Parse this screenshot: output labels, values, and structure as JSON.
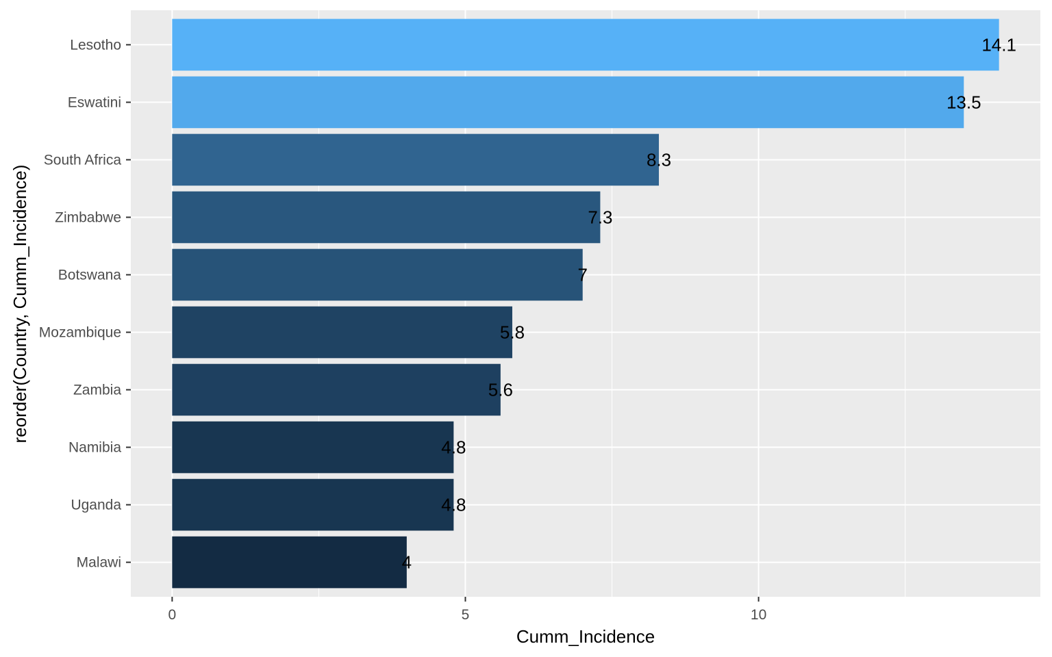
{
  "chart_data": {
    "type": "bar",
    "orientation": "horizontal",
    "categories": [
      "Lesotho",
      "Eswatini",
      "South Africa",
      "Zimbabwe",
      "Botswana",
      "Mozambique",
      "Zambia",
      "Namibia",
      "Uganda",
      "Malawi"
    ],
    "values": [
      14.1,
      13.5,
      8.3,
      7.3,
      7,
      5.8,
      5.6,
      4.8,
      4.8,
      4
    ],
    "data_labels": [
      "14.1",
      "13.5",
      "8.3",
      "7.3",
      "7",
      "5.8",
      "5.6",
      "4.8",
      "4.8",
      "4"
    ],
    "xlabel": "Cumm_Incidence",
    "ylabel": "reorder(Country, Cumm_Incidence)",
    "x_ticks": [
      0,
      5,
      10
    ],
    "x_tick_labels": [
      "0",
      "5",
      "10"
    ],
    "xlim": [
      -0.705,
      14.805
    ],
    "grid": true,
    "legend": "none",
    "fill_scale": {
      "low": "#132B43",
      "high": "#56B1F7"
    },
    "panel_background": "#EBEBEB",
    "gridline_color": "#FFFFFF"
  }
}
